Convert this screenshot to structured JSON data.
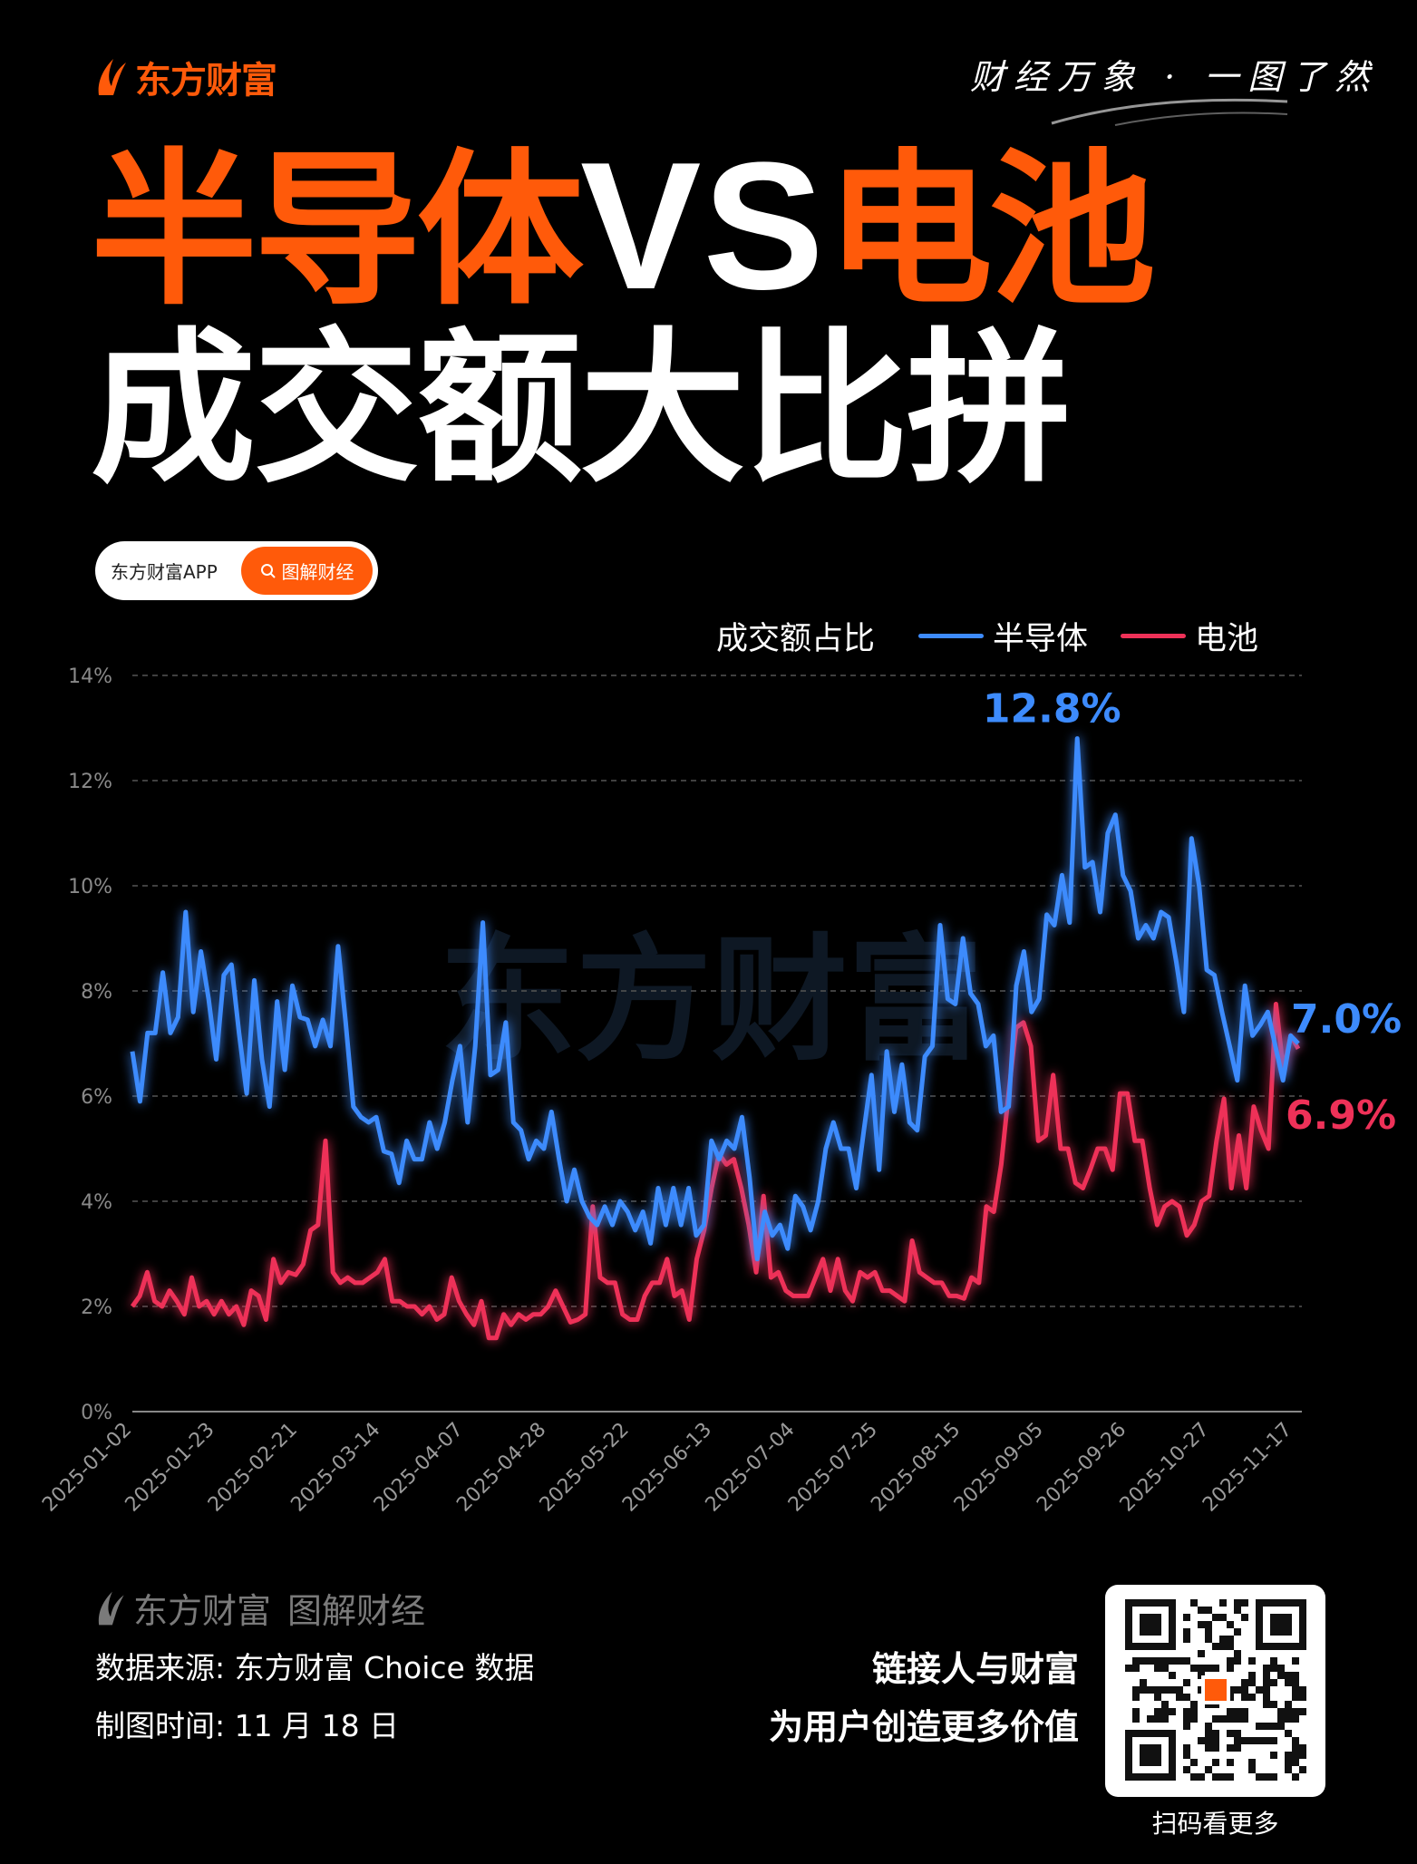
{
  "header": {
    "brand": "东方财富",
    "slogan": "财经万象 · 一图了然",
    "title_part1": "半导体",
    "title_vs": "VS",
    "title_part2": "电池",
    "subtitle": "成交额大比拼",
    "pill_app": "东方财富APP",
    "pill_search": "图解财经"
  },
  "colors": {
    "brand": "#ff5a0a",
    "semiconductor": "#3d8bfd",
    "battery": "#ee3158",
    "grid": "#555555",
    "watermark": "#0e1824"
  },
  "chart_data": {
    "type": "line",
    "title": "成交额占比",
    "watermark": "东方财富",
    "ylim": [
      0,
      14
    ],
    "yticks": [
      "0%",
      "2%",
      "4%",
      "6%",
      "8%",
      "10%",
      "12%",
      "14%"
    ],
    "ytick_values": [
      0,
      2,
      4,
      6,
      8,
      10,
      12,
      14
    ],
    "x_days": 211,
    "xticks": [
      "2025-01-02",
      "2025-01-23",
      "2025-02-21",
      "2025-03-14",
      "2025-04-07",
      "2025-04-28",
      "2025-05-22",
      "2025-06-13",
      "2025-07-04",
      "2025-07-25",
      "2025-08-15",
      "2025-09-05",
      "2025-09-26",
      "2025-10-27",
      "2025-11-17"
    ],
    "xtick_days": [
      0,
      15,
      30,
      45,
      60,
      75,
      90,
      105,
      120,
      135,
      150,
      165,
      180,
      195,
      210
    ],
    "grid": "horizontal-dashed",
    "legend": "top-right",
    "series": [
      {
        "name": "半导体",
        "color": "#3d8bfd",
        "values": [
          6.85,
          5.9,
          7.2,
          7.2,
          8.35,
          7.2,
          7.5,
          9.5,
          7.6,
          8.75,
          7.85,
          6.7,
          8.3,
          8.5,
          7.2,
          6.05,
          8.2,
          6.7,
          5.8,
          7.8,
          6.5,
          8.1,
          7.5,
          7.45,
          6.95,
          7.45,
          6.95,
          8.85,
          7.4,
          5.8,
          5.6,
          5.5,
          5.6,
          4.95,
          4.9,
          4.35,
          5.15,
          4.8,
          4.8,
          5.5,
          5.0,
          5.5,
          6.3,
          6.95,
          5.5,
          6.95,
          9.3,
          6.4,
          6.5,
          7.4,
          5.5,
          5.35,
          4.8,
          5.15,
          5.0,
          5.7,
          4.8,
          4.0,
          4.6,
          4.0,
          3.7,
          3.55,
          3.9,
          3.55,
          4.0,
          3.8,
          3.45,
          3.8,
          3.2,
          4.25,
          3.55,
          4.25,
          3.55,
          4.25,
          3.35,
          3.55,
          5.15,
          4.8,
          5.15,
          5.0,
          5.6,
          4.45,
          2.9,
          3.8,
          3.35,
          3.55,
          3.1,
          4.1,
          3.9,
          3.45,
          4.0,
          5.0,
          5.5,
          5.0,
          5.0,
          4.25,
          5.35,
          6.4,
          4.6,
          6.85,
          5.7,
          6.6,
          5.5,
          5.35,
          6.75,
          6.95,
          9.25,
          7.85,
          7.75,
          9.0,
          7.95,
          7.75,
          6.95,
          7.15,
          5.7,
          5.8,
          8.1,
          8.75,
          7.6,
          7.85,
          9.45,
          9.25,
          10.2,
          9.3,
          12.8,
          10.35,
          10.45,
          9.5,
          11.0,
          11.35,
          10.2,
          9.9,
          9.0,
          9.25,
          9.0,
          9.5,
          9.4,
          8.55,
          7.6,
          10.9,
          10.0,
          8.4,
          8.3,
          7.6,
          6.95,
          6.3,
          8.1,
          7.15,
          7.35,
          7.6,
          6.95,
          6.3,
          7.15,
          7.0
        ],
        "annotations": [
          {
            "label": "12.8%",
            "value": 12.8,
            "at": "peak"
          },
          {
            "label": "7.0%",
            "value": 7.0,
            "at": "end"
          }
        ]
      },
      {
        "name": "电池",
        "color": "#ee3158",
        "values": [
          2.0,
          2.2,
          2.65,
          2.1,
          2.0,
          2.3,
          2.1,
          1.85,
          2.55,
          2.0,
          2.1,
          1.85,
          2.1,
          1.85,
          2.0,
          1.65,
          2.3,
          2.2,
          1.75,
          2.9,
          2.45,
          2.65,
          2.6,
          2.8,
          3.45,
          3.55,
          5.15,
          2.65,
          2.45,
          2.55,
          2.45,
          2.45,
          2.55,
          2.65,
          2.9,
          2.1,
          2.1,
          2.0,
          2.0,
          1.85,
          2.0,
          1.75,
          1.85,
          2.55,
          2.1,
          1.85,
          1.65,
          2.1,
          1.4,
          1.4,
          1.85,
          1.65,
          1.85,
          1.75,
          1.85,
          1.85,
          2.0,
          2.3,
          2.0,
          1.7,
          1.75,
          1.85,
          3.9,
          2.55,
          2.45,
          2.45,
          1.85,
          1.75,
          1.75,
          2.2,
          2.45,
          2.45,
          2.9,
          2.2,
          2.3,
          1.75,
          2.9,
          3.45,
          4.25,
          4.9,
          4.7,
          4.8,
          4.25,
          3.55,
          2.65,
          4.1,
          2.55,
          2.65,
          2.3,
          2.2,
          2.2,
          2.2,
          2.55,
          2.9,
          2.3,
          2.9,
          2.3,
          2.1,
          2.65,
          2.55,
          2.65,
          2.3,
          2.3,
          2.2,
          2.1,
          3.25,
          2.65,
          2.55,
          2.45,
          2.45,
          2.2,
          2.2,
          2.15,
          2.55,
          2.45,
          3.9,
          3.8,
          4.7,
          6.05,
          7.3,
          7.4,
          6.95,
          5.15,
          5.25,
          6.4,
          5.0,
          5.0,
          4.35,
          4.25,
          4.6,
          5.0,
          5.0,
          4.6,
          6.05,
          6.05,
          5.15,
          5.15,
          4.25,
          3.55,
          3.9,
          4.0,
          3.9,
          3.35,
          3.55,
          4.0,
          4.1,
          5.15,
          5.95,
          4.25,
          5.25,
          4.25,
          5.8,
          5.35,
          5.0,
          7.75,
          6.5,
          7.15,
          6.9
        ],
        "annotations": [
          {
            "label": "6.9%",
            "value": 6.9,
            "at": "end"
          }
        ]
      }
    ]
  },
  "footer": {
    "brand": "东方财富",
    "brand_sub": "图解财经",
    "source": "数据来源: 东方财富 Choice 数据",
    "date": "制图时间: 11 月 18 日",
    "tagline1": "链接人与财富",
    "tagline2": "为用户创造更多价值",
    "qr_caption": "扫码看更多"
  }
}
